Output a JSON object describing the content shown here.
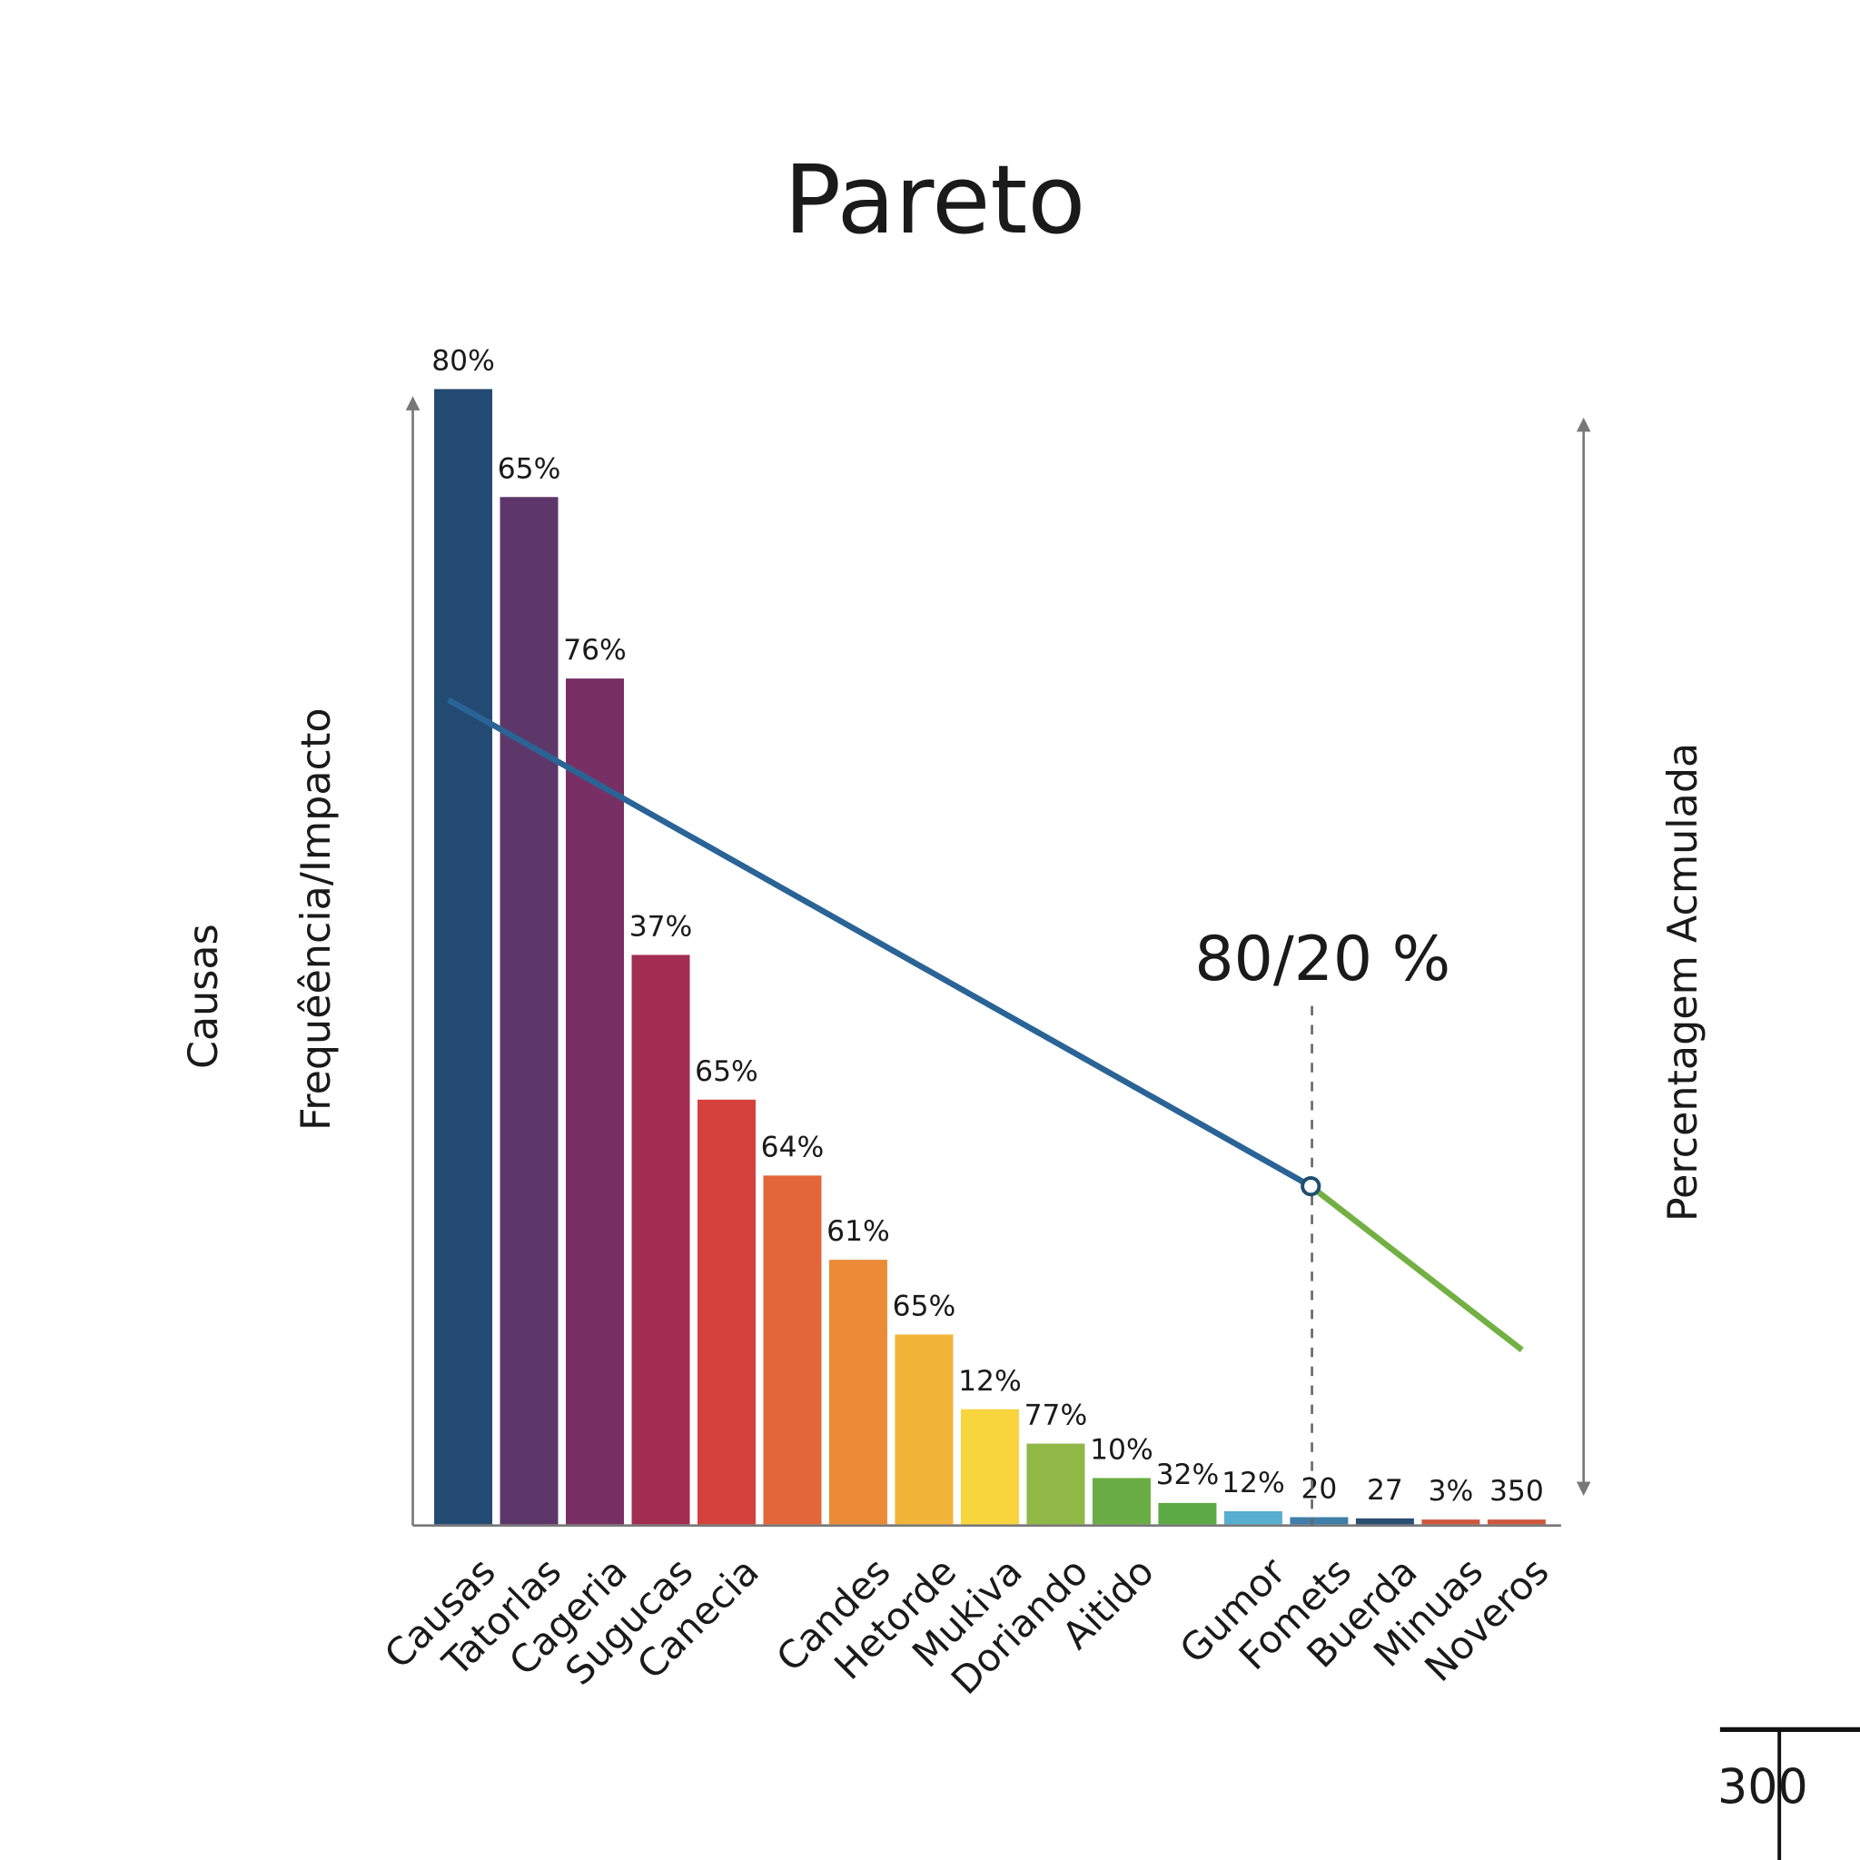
{
  "chart_data": {
    "type": "bar",
    "title": "Pareto",
    "y_label_outer": "Causas",
    "y_label": "Frequêência/Impacto",
    "y2_label": "Percentagem Acmulada",
    "annotation": "80/20 %",
    "corner_label": "300",
    "categories": [
      "Causas",
      "Tatorlas",
      "Cageria",
      "Sugucas",
      "Canecia",
      null,
      "Candes",
      "Hetorde",
      "Mukiva",
      "Doriando",
      "Aitido",
      null,
      "Gumor",
      "Fomets",
      "Buerda",
      "Minuas",
      "Noveros"
    ],
    "values": [
      957,
      866,
      713,
      480,
      358,
      294,
      223,
      160,
      97,
      68,
      39,
      18,
      11,
      6,
      5,
      4,
      4
    ],
    "bar_texts": [
      "80%",
      "65%",
      "76%",
      "37%",
      "65%",
      "64%",
      "61%",
      "65%",
      "12%",
      "77%",
      "10%",
      "32%",
      "12%",
      "20",
      "27",
      "3%",
      "350"
    ],
    "colors": [
      "#234a73",
      "#5e376a",
      "#782f63",
      "#a22d52",
      "#d5413c",
      "#e2663a",
      "#ec8b37",
      "#f2b53a",
      "#f8d43d",
      "#8fb846",
      "#6aad45",
      "#5caa45",
      "#58aecf",
      "#3f7fa8",
      "#2a4f70",
      "#d0563e",
      "#d0563e"
    ]
  }
}
